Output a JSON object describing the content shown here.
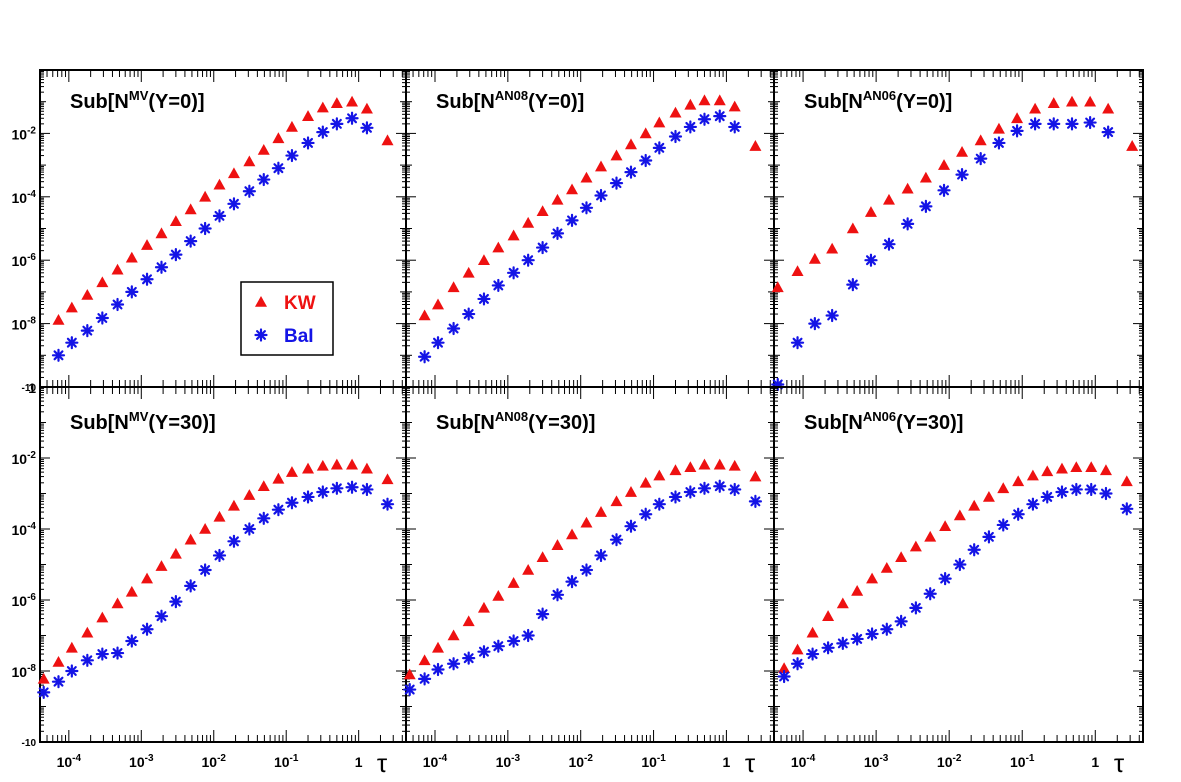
{
  "chart_data": {
    "type": "scatter",
    "layout": "2x3 grid of log-log panels",
    "xscale": "log",
    "yscale": "log",
    "xlim": [
      4e-05,
      4.5
    ],
    "ylim": [
      1e-10,
      1
    ],
    "x_tick_labels": [
      "10-4",
      "10-3",
      "10-2",
      "10-1",
      "1"
    ],
    "x_label": "τ",
    "y_tick_labels_top_row": [
      "10-2",
      "10-4",
      "10-6",
      "10-8",
      "-10"
    ],
    "y_tick_labels_bottom_row": [
      "1",
      "10-2",
      "10-4",
      "10-6",
      "10-8",
      "-10"
    ],
    "legend": {
      "panel": 0,
      "entries": [
        {
          "label": "KW",
          "color": "#ee1111",
          "marker": "triangle"
        },
        {
          "label": "BaI",
          "color": "#1414e6",
          "marker": "star"
        }
      ]
    },
    "panels": [
      {
        "title": {
          "main": "Sub[N",
          "sup": "MV",
          "rest": "(Y=0)]"
        },
        "series": [
          {
            "name": "KW",
            "x": [
              7.2e-05,
              0.00011,
              0.00018,
              0.00029,
              0.00047,
              0.00074,
              0.0012,
              0.0019,
              0.003,
              0.0048,
              0.0076,
              0.012,
              0.019,
              0.031,
              0.049,
              0.078,
              0.12,
              0.2,
              0.32,
              0.5,
              0.81,
              1.3,
              2.5
            ],
            "y": [
              1.3e-08,
              3.2e-08,
              8e-08,
              2e-07,
              5e-07,
              1.2e-06,
              3e-06,
              7e-06,
              1.7e-05,
              4e-05,
              0.0001,
              0.00024,
              0.00055,
              0.0013,
              0.003,
              0.007,
              0.016,
              0.035,
              0.065,
              0.09,
              0.1,
              0.06,
              0.006
            ]
          },
          {
            "name": "BaI",
            "x": [
              7.2e-05,
              0.00011,
              0.00018,
              0.00029,
              0.00047,
              0.00074,
              0.0012,
              0.0019,
              0.003,
              0.0048,
              0.0076,
              0.012,
              0.019,
              0.031,
              0.049,
              0.078,
              0.12,
              0.2,
              0.32,
              0.5,
              0.81,
              1.3
            ],
            "y": [
              1e-09,
              2.5e-09,
              6e-09,
              1.5e-08,
              4e-08,
              1e-07,
              2.5e-07,
              6e-07,
              1.5e-06,
              4e-06,
              1e-05,
              2.5e-05,
              6e-05,
              0.00015,
              0.00035,
              0.0008,
              0.002,
              0.005,
              0.011,
              0.02,
              0.03,
              0.015
            ]
          }
        ]
      },
      {
        "title": {
          "main": "Sub[N",
          "sup": "AN08",
          "rest": "(Y=0)]"
        },
        "series": [
          {
            "name": "KW",
            "x": [
              7.2e-05,
              0.00011,
              0.00018,
              0.00029,
              0.00047,
              0.00074,
              0.0012,
              0.0019,
              0.003,
              0.0048,
              0.0076,
              0.012,
              0.019,
              0.031,
              0.049,
              0.078,
              0.12,
              0.2,
              0.32,
              0.5,
              0.81,
              1.3,
              2.5
            ],
            "y": [
              1.8e-08,
              4e-08,
              1.4e-07,
              4e-07,
              1e-06,
              2.5e-06,
              6e-06,
              1.5e-05,
              3.5e-05,
              8e-05,
              0.00017,
              0.0004,
              0.0009,
              0.002,
              0.0045,
              0.01,
              0.022,
              0.045,
              0.08,
              0.11,
              0.11,
              0.07,
              0.004
            ]
          },
          {
            "name": "BaI",
            "x": [
              7.2e-05,
              0.00011,
              0.00018,
              0.00029,
              0.00047,
              0.00074,
              0.0012,
              0.0019,
              0.003,
              0.0048,
              0.0076,
              0.012,
              0.019,
              0.031,
              0.049,
              0.078,
              0.12,
              0.2,
              0.32,
              0.5,
              0.81,
              1.3
            ],
            "y": [
              9e-10,
              2.5e-09,
              7e-09,
              2e-08,
              6e-08,
              1.6e-07,
              4e-07,
              1e-06,
              2.5e-06,
              7e-06,
              1.8e-05,
              4.5e-05,
              0.00011,
              0.00027,
              0.0006,
              0.0014,
              0.0035,
              0.008,
              0.016,
              0.028,
              0.035,
              0.016
            ]
          }
        ]
      },
      {
        "title": {
          "main": "Sub[N",
          "sup": "AN06",
          "rest": "(Y=0)]"
        },
        "series": [
          {
            "name": "KW",
            "x": [
              4.5e-05,
              8.4e-05,
              0.000145,
              0.00025,
              0.00048,
              0.00085,
              0.0015,
              0.0027,
              0.0048,
              0.0085,
              0.015,
              0.027,
              0.048,
              0.085,
              0.15,
              0.27,
              0.48,
              0.85,
              1.5,
              3.2
            ],
            "y": [
              1.4e-07,
              4.5e-07,
              1.1e-06,
              2.3e-06,
              1e-05,
              3.3e-05,
              8e-05,
              0.00018,
              0.0004,
              0.001,
              0.0026,
              0.006,
              0.014,
              0.03,
              0.06,
              0.09,
              0.1,
              0.1,
              0.06,
              0.004
            ]
          },
          {
            "name": "BaI",
            "x": [
              4.5e-05,
              8.4e-05,
              0.000145,
              0.00025,
              0.00048,
              0.00085,
              0.0015,
              0.0027,
              0.0048,
              0.0085,
              0.015,
              0.027,
              0.048,
              0.085,
              0.15,
              0.27,
              0.48,
              0.85,
              1.5
            ],
            "y": [
              1.2e-10,
              2.5e-09,
              1e-08,
              1.8e-08,
              1.7e-07,
              1e-06,
              3.2e-06,
              1.4e-05,
              5e-05,
              0.00016,
              0.0005,
              0.0016,
              0.005,
              0.012,
              0.02,
              0.02,
              0.02,
              0.022,
              0.011
            ]
          }
        ]
      },
      {
        "title": {
          "main": "Sub[N",
          "sup": "MV",
          "rest": "(Y=30)]"
        },
        "series": [
          {
            "name": "KW",
            "x": [
              4.5e-05,
              7.2e-05,
              0.00011,
              0.00018,
              0.00029,
              0.00047,
              0.00074,
              0.0012,
              0.0019,
              0.003,
              0.0048,
              0.0076,
              0.012,
              0.019,
              0.031,
              0.049,
              0.078,
              0.12,
              0.2,
              0.32,
              0.5,
              0.81,
              1.3,
              2.5
            ],
            "y": [
              6e-09,
              1.8e-08,
              4.5e-08,
              1.2e-07,
              3.2e-07,
              8e-07,
              1.7e-06,
              4e-06,
              9e-06,
              2e-05,
              5e-05,
              0.0001,
              0.00022,
              0.00045,
              0.0009,
              0.0016,
              0.0026,
              0.004,
              0.005,
              0.006,
              0.0065,
              0.0065,
              0.005,
              0.0025
            ]
          },
          {
            "name": "BaI",
            "x": [
              4.5e-05,
              7.2e-05,
              0.00011,
              0.00018,
              0.00029,
              0.00047,
              0.00074,
              0.0012,
              0.0019,
              0.003,
              0.0048,
              0.0076,
              0.012,
              0.019,
              0.031,
              0.049,
              0.078,
              0.12,
              0.2,
              0.32,
              0.5,
              0.81,
              1.3,
              2.5
            ],
            "y": [
              2.5e-09,
              5e-09,
              1e-08,
              2e-08,
              3e-08,
              3.2e-08,
              7e-08,
              1.5e-07,
              3.5e-07,
              9e-07,
              2.5e-06,
              7e-06,
              1.8e-05,
              4.5e-05,
              0.0001,
              0.0002,
              0.00035,
              0.00055,
              0.0008,
              0.0011,
              0.0014,
              0.0015,
              0.0013,
              0.0005
            ]
          }
        ]
      },
      {
        "title": {
          "main": "Sub[N",
          "sup": "AN08",
          "rest": "(Y=30)]"
        },
        "series": [
          {
            "name": "KW",
            "x": [
              4.5e-05,
              7.2e-05,
              0.00011,
              0.00018,
              0.00029,
              0.00047,
              0.00074,
              0.0012,
              0.0019,
              0.003,
              0.0048,
              0.0076,
              0.012,
              0.019,
              0.031,
              0.049,
              0.078,
              0.12,
              0.2,
              0.32,
              0.5,
              0.81,
              1.3,
              2.5
            ],
            "y": [
              8e-09,
              2e-08,
              4.5e-08,
              1e-07,
              2.5e-07,
              6e-07,
              1.3e-06,
              3e-06,
              7e-06,
              1.6e-05,
              3.5e-05,
              7e-05,
              0.00015,
              0.0003,
              0.0006,
              0.0011,
              0.002,
              0.0032,
              0.0045,
              0.0055,
              0.0065,
              0.0065,
              0.006,
              0.003
            ]
          },
          {
            "name": "BaI",
            "x": [
              4.5e-05,
              7.2e-05,
              0.00011,
              0.00018,
              0.00029,
              0.00047,
              0.00074,
              0.0012,
              0.0019,
              0.003,
              0.0048,
              0.0076,
              0.012,
              0.019,
              0.031,
              0.049,
              0.078,
              0.12,
              0.2,
              0.32,
              0.5,
              0.81,
              1.3,
              2.5
            ],
            "y": [
              3e-09,
              6e-09,
              1.1e-08,
              1.6e-08,
              2.3e-08,
              3.5e-08,
              5e-08,
              7e-08,
              1e-07,
              4e-07,
              1.4e-06,
              3.3e-06,
              7e-06,
              1.8e-05,
              5e-05,
              0.00012,
              0.00026,
              0.0005,
              0.0008,
              0.0011,
              0.0014,
              0.0016,
              0.0013,
              0.0006
            ]
          }
        ]
      },
      {
        "title": {
          "main": "Sub[N",
          "sup": "AN06",
          "rest": "(Y=30)]"
        },
        "series": [
          {
            "name": "KW",
            "x": [
              5.5e-05,
              8.4e-05,
              0.000135,
              0.00022,
              0.00035,
              0.00055,
              0.00088,
              0.0014,
              0.0022,
              0.0035,
              0.0055,
              0.0088,
              0.014,
              0.022,
              0.035,
              0.055,
              0.088,
              0.14,
              0.22,
              0.35,
              0.55,
              0.88,
              1.4,
              2.7
            ],
            "y": [
              1.2e-08,
              4e-08,
              1.2e-07,
              3.5e-07,
              8e-07,
              1.8e-06,
              4e-06,
              8e-06,
              1.6e-05,
              3.2e-05,
              6e-05,
              0.00012,
              0.00024,
              0.00045,
              0.0008,
              0.0014,
              0.0022,
              0.0032,
              0.0042,
              0.005,
              0.0055,
              0.0055,
              0.0045,
              0.0022
            ]
          },
          {
            "name": "BaI",
            "x": [
              5.5e-05,
              8.4e-05,
              0.000135,
              0.00022,
              0.00035,
              0.00055,
              0.00088,
              0.0014,
              0.0022,
              0.0035,
              0.0055,
              0.0088,
              0.014,
              0.022,
              0.035,
              0.055,
              0.088,
              0.14,
              0.22,
              0.35,
              0.55,
              0.88,
              1.4,
              2.7
            ],
            "y": [
              7e-09,
              1.6e-08,
              3e-08,
              4.5e-08,
              6e-08,
              8e-08,
              1.1e-07,
              1.5e-07,
              2.5e-07,
              6e-07,
              1.5e-06,
              4e-06,
              1e-05,
              2.6e-05,
              6e-05,
              0.00013,
              0.00026,
              0.0005,
              0.0008,
              0.0011,
              0.0013,
              0.0013,
              0.001,
              0.00037
            ]
          }
        ]
      }
    ]
  }
}
